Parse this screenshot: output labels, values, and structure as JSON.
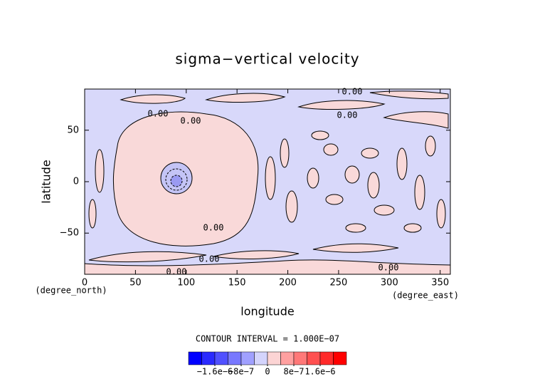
{
  "chart_data": {
    "type": "contour",
    "title": "sigma−vertical velocity",
    "x_label": "longitude",
    "y_label": "latitude",
    "x_units": "(degree_east)",
    "y_units": "(degree_north)",
    "xlim": [
      0,
      360
    ],
    "ylim": [
      -90,
      90
    ],
    "xticks": [
      0,
      50,
      100,
      150,
      200,
      250,
      300,
      350
    ],
    "yticks": [
      {
        "value": -50,
        "label": "−50"
      },
      0,
      50
    ],
    "contour_labels": [
      "0.00",
      "0.00",
      "0.00",
      "0.00",
      "0.00",
      "0.00",
      "0.00",
      "0.00"
    ],
    "contour_interval": "CONTOUR INTERVAL = 1.000E−07",
    "colorbar": {
      "lim": [
        -2.4e-06,
        2.4e-06
      ],
      "ticks": [
        {
          "value": -1.6e-06,
          "label": "−1.6e−6"
        },
        {
          "value": -8e-07,
          "label": "−8e−7"
        },
        0,
        {
          "value": 8e-07,
          "label": "8e−7"
        },
        {
          "value": 1.6e-06,
          "label": "1.6e−6"
        }
      ],
      "colors": [
        "#0000ff",
        "#2a2aff",
        "#5050ff",
        "#7878ff",
        "#a0a0ff",
        "#d4d4fc",
        "#fcd4d4",
        "#ffa0a0",
        "#ff7878",
        "#ff5050",
        "#ff2a2a",
        "#ff0000"
      ]
    }
  }
}
